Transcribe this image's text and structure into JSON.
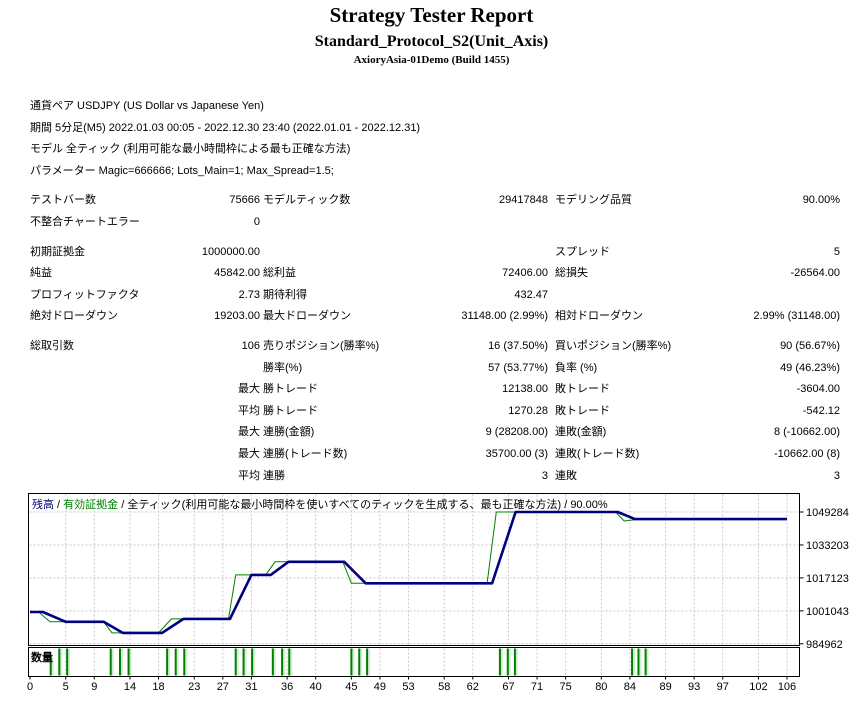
{
  "header": {
    "title": "Strategy Tester Report",
    "expert": "Standard_Protocol_S2(Unit_Axis)",
    "server": "AxioryAsia-01Demo (Build 1455)"
  },
  "params": {
    "rows": [
      {
        "label": "通貨ペア",
        "value": "USDJPY (US Dollar vs Japanese Yen)"
      },
      {
        "label": "期間",
        "value": "5分足(M5) 2022.01.03 00:05 - 2022.12.30 23:40 (2022.01.01 - 2022.12.31)"
      },
      {
        "label": "モデル",
        "value": "全ティック (利用可能な最小時間枠による最も正確な方法)"
      },
      {
        "label": "パラメーター",
        "value": "Magic=666666; Lots_Main=1; Max_Spread=1.5;"
      }
    ]
  },
  "stats": {
    "sections": [
      {
        "rows": [
          [
            "テストバー数",
            "75666",
            "モデルティック数",
            "29417848",
            "モデリング品質",
            "90.00%"
          ],
          [
            "不整合チャートエラー",
            "0",
            "",
            "",
            "",
            ""
          ]
        ]
      },
      {
        "rows": [
          [
            "初期証拠金",
            "1000000.00",
            "",
            "",
            "スプレッド",
            "5"
          ],
          [
            "純益",
            "45842.00",
            "総利益",
            "72406.00",
            "総損失",
            "-26564.00"
          ],
          [
            "プロフィットファクタ",
            "2.73",
            "期待利得",
            "432.47",
            "",
            ""
          ],
          [
            "絶対ドローダウン",
            "19203.00",
            "最大ドローダウン",
            "31148.00 (2.99%)",
            "相対ドローダウン",
            "2.99% (31148.00)"
          ]
        ]
      },
      {
        "rows": [
          [
            "総取引数",
            "106",
            "売りポジション(勝率%)",
            "16 (37.50%)",
            "買いポジション(勝率%)",
            "90 (56.67%)"
          ],
          [
            "",
            "",
            "勝率(%)",
            "57 (53.77%)",
            "負率 (%)",
            "49 (46.23%)"
          ],
          [
            "",
            "最大",
            "勝トレード",
            "12138.00",
            "敗トレード",
            "-3604.00"
          ],
          [
            "",
            "平均",
            "勝トレード",
            "1270.28",
            "敗トレード",
            "-542.12"
          ],
          [
            "",
            "最大",
            "連勝(金額)",
            "9 (28208.00)",
            "連敗(金額)",
            "8 (-10662.00)"
          ],
          [
            "",
            "最大",
            "連勝(トレード数)",
            "35700.00 (3)",
            "連敗(トレード数)",
            "-10662.00 (8)"
          ],
          [
            "",
            "平均",
            "連勝",
            "3",
            "連敗",
            "3"
          ]
        ]
      }
    ]
  },
  "chart": {
    "legend": {
      "balance_label": "残高",
      "equity_label": "有効証拠金",
      "separator": " / ",
      "model": "全ティック(利用可能な最小時間枠を使いすべてのティックを生成する、最も正確な方法)",
      "quality": "90.00%"
    },
    "colors": {
      "balance": "#000080",
      "equity": "#008000",
      "grid": "#c8c8c8",
      "volume": "#008000"
    }
  },
  "chart_data": {
    "type": "line",
    "title": "残高 / 有効証拠金",
    "x_ticks": [
      0,
      5,
      9,
      14,
      18,
      23,
      27,
      31,
      36,
      40,
      45,
      49,
      53,
      58,
      62,
      67,
      71,
      75,
      80,
      84,
      89,
      93,
      97,
      102,
      106
    ],
    "y_ticks": [
      1049284,
      1033203,
      1017123,
      1001043,
      984962
    ],
    "x_range": [
      0,
      106
    ],
    "grid": true,
    "legend_position": "top-left",
    "series": [
      {
        "name": "有効証拠金",
        "color": "#008000",
        "width": 1,
        "points": [
          [
            0,
            1000500
          ],
          [
            1.2,
            1000500
          ],
          [
            2.8,
            995700
          ],
          [
            10.3,
            995700
          ],
          [
            11.5,
            990300
          ],
          [
            18,
            990300
          ],
          [
            19.8,
            997100
          ],
          [
            27.8,
            997100
          ],
          [
            28.8,
            1018600
          ],
          [
            33,
            1018600
          ],
          [
            34.3,
            1025000
          ],
          [
            43.8,
            1025000
          ],
          [
            45,
            1014500
          ],
          [
            64,
            1014500
          ],
          [
            65.3,
            1049284
          ],
          [
            82,
            1049284
          ],
          [
            83.2,
            1044900
          ],
          [
            85.5,
            1045842
          ],
          [
            106,
            1045842
          ]
        ]
      },
      {
        "name": "残高",
        "color": "#000080",
        "width": 2.6,
        "points": [
          [
            0,
            1000500
          ],
          [
            1.8,
            1000500
          ],
          [
            5,
            995700
          ],
          [
            10.3,
            995700
          ],
          [
            13,
            990300
          ],
          [
            18.5,
            990300
          ],
          [
            21.5,
            997100
          ],
          [
            28,
            997100
          ],
          [
            31,
            1018600
          ],
          [
            33.7,
            1018600
          ],
          [
            36.2,
            1025000
          ],
          [
            44,
            1025000
          ],
          [
            47,
            1014500
          ],
          [
            64.7,
            1014500
          ],
          [
            68,
            1049284
          ],
          [
            82.3,
            1049284
          ],
          [
            84.7,
            1045842
          ],
          [
            106,
            1045842
          ]
        ]
      }
    ],
    "volume": {
      "label": "数量",
      "bars": [
        [
          2.9,
          0.65
        ],
        [
          4.1,
          1
        ],
        [
          5.2,
          1
        ],
        [
          11.3,
          1
        ],
        [
          12.6,
          1
        ],
        [
          13.8,
          1
        ],
        [
          19.2,
          1
        ],
        [
          20.4,
          1
        ],
        [
          21.6,
          1
        ],
        [
          28.8,
          1
        ],
        [
          29.9,
          1
        ],
        [
          31.1,
          1
        ],
        [
          34,
          1
        ],
        [
          35.3,
          1
        ],
        [
          36.3,
          1
        ],
        [
          45,
          1
        ],
        [
          46.1,
          1
        ],
        [
          47.2,
          1
        ],
        [
          65.8,
          1
        ],
        [
          66.9,
          1
        ],
        [
          67.9,
          1
        ],
        [
          84.3,
          1
        ],
        [
          85.2,
          1
        ],
        [
          86.2,
          1
        ]
      ]
    }
  }
}
